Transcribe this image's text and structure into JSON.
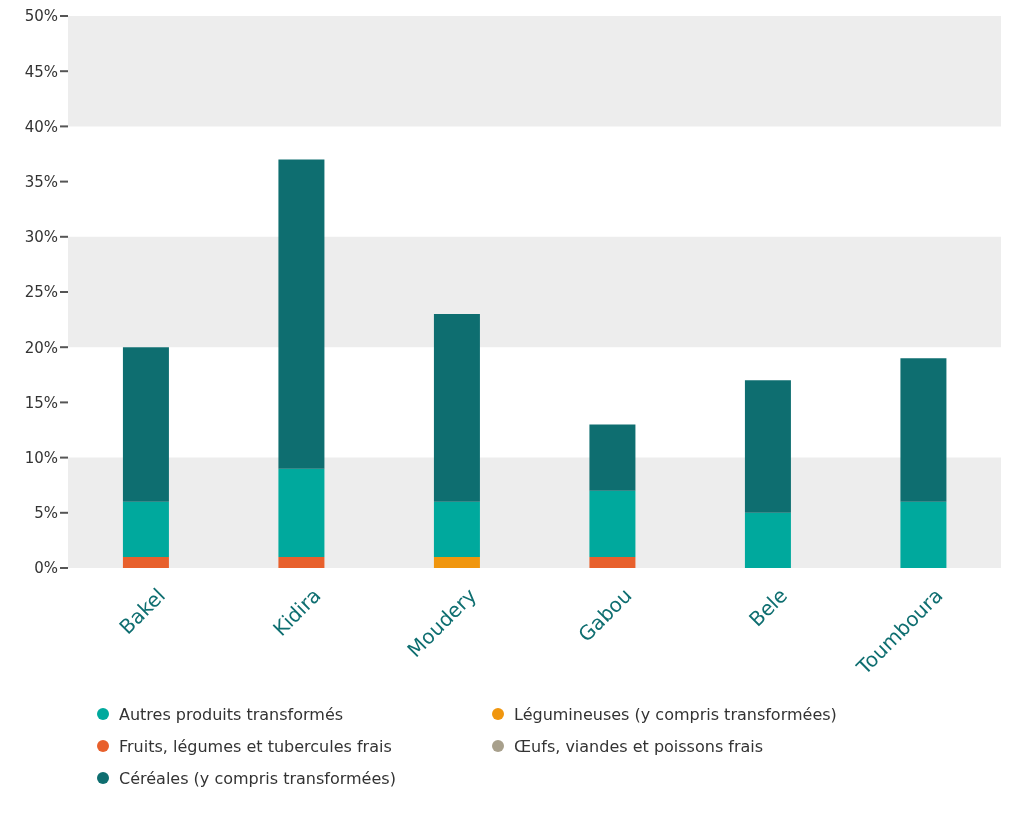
{
  "chart_data": {
    "type": "bar",
    "stacked": true,
    "categories": [
      "Bakel",
      "Kidira",
      "Moudery",
      "Gabou",
      "Bele",
      "Toumboura"
    ],
    "series": [
      {
        "name": "Fruits, légumes et tubercules frais",
        "color": "#e8602c",
        "values": [
          1,
          1,
          null,
          1,
          null,
          null
        ]
      },
      {
        "name": "Légumineuses (y compris transformées)",
        "color": "#f0960e",
        "values": [
          null,
          null,
          1,
          null,
          null,
          null
        ]
      },
      {
        "name": "Œufs, viandes et poissons frais",
        "color": "#a8a08c",
        "values": [
          null,
          null,
          null,
          null,
          null,
          null
        ]
      },
      {
        "name": "Autres produits transformés",
        "color": "#00a99d",
        "values": [
          5,
          8,
          5,
          6,
          5,
          6
        ]
      },
      {
        "name": "Céréales (y compris transformées)",
        "color": "#0e6e70",
        "values": [
          14,
          28,
          17,
          6,
          12,
          13
        ]
      }
    ],
    "ylim": [
      0,
      50
    ],
    "yticks": [
      {
        "value": 0,
        "label": "0%"
      },
      {
        "value": 5,
        "label": "5%"
      },
      {
        "value": 10,
        "label": "10%"
      },
      {
        "value": 15,
        "label": "15%"
      },
      {
        "value": 20,
        "label": "20%"
      },
      {
        "value": 25,
        "label": "25%"
      },
      {
        "value": 30,
        "label": "30%"
      },
      {
        "value": 35,
        "label": "35%"
      },
      {
        "value": 40,
        "label": "40%"
      },
      {
        "value": 45,
        "label": "45%"
      },
      {
        "value": 50,
        "label": "50%"
      }
    ],
    "bands": [
      {
        "axis": "y",
        "from": 0,
        "to": 10,
        "color": "#ededed"
      },
      {
        "axis": "y",
        "from": 20,
        "to": 30,
        "color": "#ededed"
      },
      {
        "axis": "y",
        "from": 40,
        "to": 50,
        "color": "#ededed"
      }
    ],
    "legend": "bottom"
  }
}
